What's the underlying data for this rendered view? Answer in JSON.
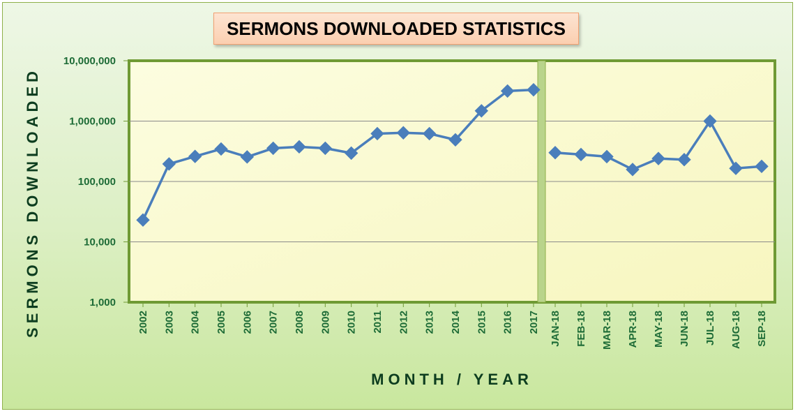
{
  "chart_data": {
    "type": "line",
    "title": "SERMONS DOWNLOADED STATISTICS",
    "xlabel": "MONTH / YEAR",
    "ylabel": "SERMONS DOWNLOADED",
    "yscale": "log",
    "ylim": [
      1000,
      10000000
    ],
    "y_ticks": [
      "1,000",
      "10,000",
      "100,000",
      "1,000,000",
      "10,000,000"
    ],
    "y_tick_values": [
      1000,
      10000,
      100000,
      1000000,
      10000000
    ],
    "grid": true,
    "legend": "none",
    "categories": [
      "2002",
      "2003",
      "2004",
      "2005",
      "2006",
      "2007",
      "2008",
      "2009",
      "2010",
      "2011",
      "2012",
      "2013",
      "2014",
      "2015",
      "2016",
      "2017",
      "JAN-18",
      "FEB-18",
      "MAR-18",
      "APR-18",
      "MAY-18",
      "JUN-18",
      "JUL-18",
      "AUG-18",
      "SEP-18"
    ],
    "series": [
      {
        "color": "#4a7ebb",
        "segments": [
          {
            "categories": [
              "2002",
              "2003",
              "2004",
              "2005",
              "2006",
              "2007",
              "2008",
              "2009",
              "2010",
              "2011",
              "2012",
              "2013",
              "2014",
              "2015",
              "2016",
              "2017"
            ],
            "values": [
              23000,
              195000,
              260000,
              345000,
              255000,
              355000,
              375000,
              355000,
              295000,
              620000,
              640000,
              620000,
              490000,
              1480000,
              3150000,
              3300000
            ]
          },
          {
            "categories": [
              "JAN-18",
              "FEB-18",
              "MAR-18",
              "APR-18",
              "MAY-18",
              "JUN-18",
              "JUL-18",
              "AUG-18",
              "SEP-18"
            ],
            "values": [
              300000,
              280000,
              258000,
              158000,
              240000,
              230000,
              1000000,
              165000,
              178000
            ]
          }
        ]
      }
    ],
    "colors": {
      "line": "#4a7ebb",
      "plot_background": "#fbfbd0",
      "plot_border": "#6f9a34",
      "tick_text": "#1d6b36",
      "axis_title": "#0d3d1f",
      "divider": "#a9c97a"
    }
  }
}
